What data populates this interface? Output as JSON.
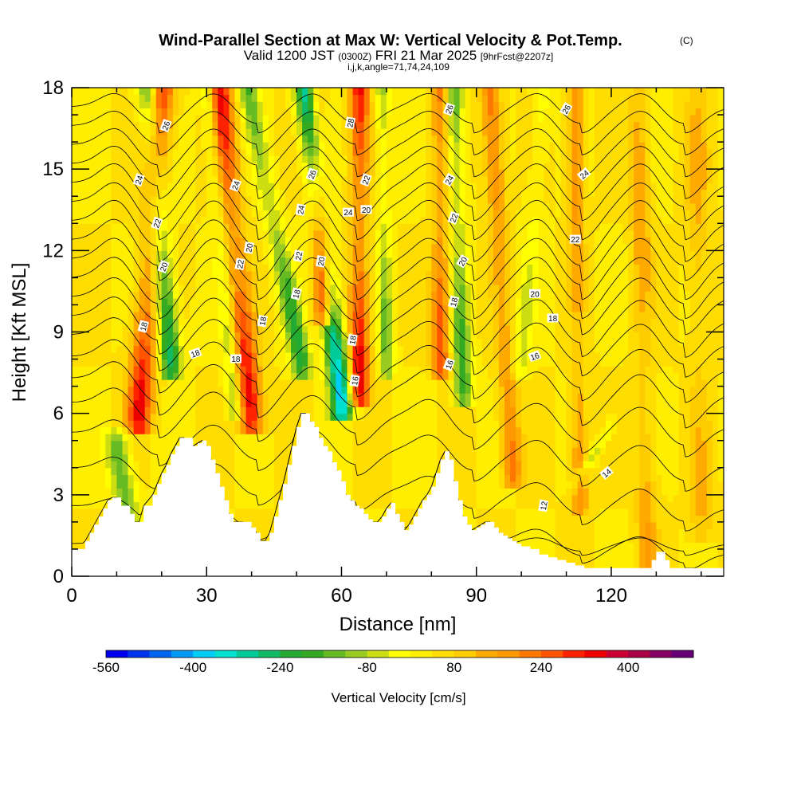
{
  "chart_data": {
    "type": "heatmap",
    "title": "Wind-Parallel Section at Max W: Vertical Velocity & Pot.Temp.",
    "title_mark": "(C)",
    "subtitle_valid": "Valid 1200 JST",
    "subtitle_utc": "(0300Z)",
    "subtitle_date": "FRI 21 Mar 2025",
    "subtitle_fcst": "[9hrFcst@2207z]",
    "subtitle_params": "i,j,k,angle=71,74,24,109",
    "xlabel": "Distance [nm]",
    "ylabel": "Height [Kft MSL]",
    "xlim": [
      0,
      145
    ],
    "ylim": [
      0,
      18
    ],
    "x_ticks": [
      "0",
      "30",
      "60",
      "90",
      "120"
    ],
    "x_tick_values": [
      0,
      30,
      60,
      90,
      120
    ],
    "y_ticks": [
      "0",
      "3",
      "6",
      "9",
      "12",
      "15",
      "18"
    ],
    "y_tick_values": [
      0,
      3,
      6,
      9,
      12,
      15,
      18
    ],
    "colorbar": {
      "title": "Vertical Velocity [cm/s]",
      "tick_labels": [
        "-560",
        "-400",
        "-240",
        "-80",
        "80",
        "240",
        "400"
      ],
      "tick_values": [
        -560,
        -400,
        -240,
        -80,
        80,
        240,
        400
      ],
      "range": [
        -560,
        520
      ],
      "colors": [
        "#0000ee",
        "#0033ee",
        "#0066f0",
        "#0099f5",
        "#00ccf8",
        "#00e0d0",
        "#00cc99",
        "#11bb66",
        "#22aa33",
        "#33aa22",
        "#66bb22",
        "#99cc22",
        "#ccdd11",
        "#ffff00",
        "#ffee00",
        "#ffdd00",
        "#ffcc00",
        "#ffaa00",
        "#ff9900",
        "#ff7700",
        "#ff5500",
        "#ff2200",
        "#ee0000",
        "#cc0033",
        "#aa0044",
        "#880066",
        "#660077"
      ]
    },
    "terrain": {
      "x": [
        0,
        2,
        3,
        4,
        5,
        6,
        7,
        8,
        9,
        10,
        11,
        13,
        14,
        15,
        16,
        18,
        19,
        20,
        21,
        22,
        23,
        24,
        25,
        27,
        28,
        29,
        30,
        31,
        32,
        33,
        34,
        35,
        36,
        37,
        38,
        40,
        41,
        42,
        43,
        44,
        45,
        46,
        47,
        48,
        49,
        50,
        51,
        52,
        53,
        54,
        55,
        56,
        57,
        58,
        59,
        60,
        61,
        62,
        63,
        64,
        65,
        66,
        67,
        68,
        69,
        70,
        71,
        72,
        73,
        74,
        75,
        76,
        77,
        78,
        79,
        80,
        81,
        82,
        83,
        84,
        85,
        86,
        87,
        88,
        89,
        90,
        91,
        92,
        93,
        94,
        95,
        96,
        97,
        98,
        99,
        100,
        102,
        104,
        106,
        108,
        110,
        112,
        114,
        116,
        118,
        120,
        122,
        124,
        126,
        128,
        129,
        130,
        131,
        132,
        133,
        134,
        135,
        136,
        138,
        140,
        142,
        145
      ],
      "y": [
        1.0,
        1.0,
        1.3,
        1.6,
        1.9,
        2.2,
        2.5,
        2.8,
        2.9,
        2.9,
        2.6,
        2.3,
        2.0,
        2.0,
        2.6,
        3.0,
        3.4,
        3.8,
        4.1,
        4.5,
        4.8,
        5.1,
        5.1,
        4.8,
        4.9,
        5.0,
        4.8,
        4.3,
        3.8,
        3.3,
        2.8,
        2.3,
        2.0,
        2.0,
        2.0,
        1.8,
        1.6,
        1.3,
        1.3,
        1.6,
        2.2,
        2.8,
        3.4,
        4.1,
        4.8,
        5.5,
        6.0,
        6.0,
        5.7,
        5.5,
        5.1,
        4.8,
        4.6,
        4.2,
        3.9,
        3.5,
        3.0,
        2.8,
        2.6,
        2.5,
        2.3,
        2.1,
        2.0,
        2.0,
        2.2,
        2.5,
        2.7,
        2.3,
        2.0,
        1.7,
        1.9,
        2.2,
        2.5,
        2.8,
        3.0,
        3.3,
        3.8,
        4.3,
        4.6,
        4.3,
        3.5,
        2.8,
        2.2,
        1.9,
        1.7,
        1.8,
        1.9,
        2.0,
        2.0,
        1.8,
        1.6,
        1.5,
        1.4,
        1.3,
        1.2,
        1.1,
        1.0,
        0.8,
        0.7,
        0.6,
        0.5,
        0.4,
        0.3,
        0.3,
        0.3,
        0.3,
        0.3,
        0.3,
        0.3,
        0.3,
        0.6,
        0.9,
        0.9,
        0.6,
        0.3,
        0.3,
        0.3,
        0.3,
        0.3,
        0.3,
        0.3,
        0.3
      ]
    },
    "velocity_features": [
      {
        "kind": "down",
        "x0": 10,
        "y0": 4.8,
        "x1": 14,
        "y1": 0.8,
        "amp": -200,
        "w": 2.6
      },
      {
        "kind": "up",
        "x0": 15,
        "y0": 6.0,
        "x1": 20,
        "y1": 18,
        "amp": 290,
        "w": 2.8
      },
      {
        "kind": "down",
        "x0": 22,
        "y0": 8.0,
        "x1": 17,
        "y1": 18,
        "amp": -300,
        "w": 2.4
      },
      {
        "kind": "up",
        "x0": 40,
        "y0": 6.0,
        "x1": 33,
        "y1": 18,
        "amp": 310,
        "w": 2.6
      },
      {
        "kind": "down",
        "x0": 36,
        "y0": 6.5,
        "x1": 30,
        "y1": 18,
        "amp": -130,
        "w": 1.6
      },
      {
        "kind": "down",
        "x0": 51,
        "y0": 8.0,
        "x1": 39,
        "y1": 18,
        "amp": -260,
        "w": 2.2
      },
      {
        "kind": "up",
        "x0": 56,
        "y0": 10.0,
        "x1": 54,
        "y1": 18,
        "amp": 330,
        "w": 2.0
      },
      {
        "kind": "down",
        "x0": 60,
        "y0": 6.5,
        "x1": 52,
        "y1": 18,
        "amp": -420,
        "w": 2.4
      },
      {
        "kind": "up",
        "x0": 64,
        "y0": 7.0,
        "x1": 64,
        "y1": 18,
        "amp": 320,
        "w": 2.2
      },
      {
        "kind": "down",
        "x0": 70,
        "y0": 8.0,
        "x1": 69,
        "y1": 18,
        "amp": -180,
        "w": 1.6
      },
      {
        "kind": "up",
        "x0": 82,
        "y0": 8.0,
        "x1": 82,
        "y1": 18,
        "amp": 240,
        "w": 2.0
      },
      {
        "kind": "down",
        "x0": 87,
        "y0": 7.0,
        "x1": 85,
        "y1": 18,
        "amp": -240,
        "w": 2.0
      },
      {
        "kind": "up",
        "x0": 98,
        "y0": 4.0,
        "x1": 93,
        "y1": 18,
        "amp": 180,
        "w": 2.2
      },
      {
        "kind": "down",
        "x0": 100,
        "y0": 8.0,
        "x1": 105,
        "y1": 18,
        "amp": -100,
        "w": 2.0
      },
      {
        "kind": "up",
        "x0": 113,
        "y0": 3.0,
        "x1": 112,
        "y1": 18,
        "amp": 160,
        "w": 1.8
      },
      {
        "kind": "down",
        "x0": 112,
        "y0": 3.5,
        "x1": 120,
        "y1": 5.5,
        "amp": -110,
        "w": 1.3
      },
      {
        "kind": "up",
        "x0": 128,
        "y0": 1.0,
        "x1": 126,
        "y1": 18,
        "amp": 120,
        "w": 2.2
      },
      {
        "kind": "up",
        "x0": 140,
        "y0": 2.0,
        "x1": 139,
        "y1": 18,
        "amp": 90,
        "w": 2.5
      }
    ],
    "theta_levels": [
      {
        "base": 1.2,
        "slope": 0.0,
        "amp": 0.4
      },
      {
        "base": 2.6,
        "slope": -0.012,
        "amp": 0.7
      },
      {
        "base": 4.0,
        "slope": -0.01,
        "amp": 0.9
      },
      {
        "base": 5.3,
        "slope": -0.008,
        "amp": 1.0
      },
      {
        "base": 6.4,
        "slope": -0.006,
        "amp": 1.1
      },
      {
        "base": 7.3,
        "slope": -0.004,
        "amp": 1.2
      },
      {
        "base": 8.1,
        "slope": -0.003,
        "amp": 1.2
      },
      {
        "base": 8.9,
        "slope": -0.002,
        "amp": 1.2
      },
      {
        "base": 9.6,
        "slope": -0.001,
        "amp": 1.3
      },
      {
        "base": 10.3,
        "slope": 0.0,
        "amp": 1.3
      },
      {
        "base": 11.0,
        "slope": 0.0,
        "amp": 1.4
      },
      {
        "base": 11.7,
        "slope": 0.0,
        "amp": 1.4
      },
      {
        "base": 12.4,
        "slope": 0.0,
        "amp": 1.4
      },
      {
        "base": 13.1,
        "slope": 0.0,
        "amp": 1.4
      },
      {
        "base": 13.8,
        "slope": 0.0,
        "amp": 1.3
      },
      {
        "base": 14.5,
        "slope": 0.0,
        "amp": 1.3
      },
      {
        "base": 15.2,
        "slope": 0.0,
        "amp": 1.2
      },
      {
        "base": 15.9,
        "slope": 0.0,
        "amp": 1.1
      },
      {
        "base": 16.6,
        "slope": 0.0,
        "amp": 1.0
      },
      {
        "base": 17.3,
        "slope": 0.0,
        "amp": 0.9
      }
    ],
    "wave_x": [
      16,
      38,
      60,
      86,
      110,
      133
    ],
    "contour_labels": [
      {
        "text": "26",
        "x": 21,
        "y": 16.6,
        "rot": -70
      },
      {
        "text": "24",
        "x": 15,
        "y": 14.6,
        "rot": -70
      },
      {
        "text": "22",
        "x": 19,
        "y": 13.0,
        "rot": -70
      },
      {
        "text": "20",
        "x": 20.5,
        "y": 11.4,
        "rot": -70
      },
      {
        "text": "18",
        "x": 16,
        "y": 9.2,
        "rot": -75
      },
      {
        "text": "18",
        "x": 27.5,
        "y": 8.2,
        "rot": -20
      },
      {
        "text": "24",
        "x": 36.5,
        "y": 14.4,
        "rot": -70
      },
      {
        "text": "20",
        "x": 39.5,
        "y": 12.1,
        "rot": -80
      },
      {
        "text": "22",
        "x": 37.5,
        "y": 11.5,
        "rot": -80
      },
      {
        "text": "18",
        "x": 36.5,
        "y": 8.0,
        "rot": 0
      },
      {
        "text": "18",
        "x": 42.5,
        "y": 9.4,
        "rot": -80
      },
      {
        "text": "26",
        "x": 53.5,
        "y": 14.8,
        "rot": -70
      },
      {
        "text": "24",
        "x": 51,
        "y": 13.5,
        "rot": -80
      },
      {
        "text": "22",
        "x": 50.5,
        "y": 11.8,
        "rot": -80
      },
      {
        "text": "20",
        "x": 55.5,
        "y": 11.6,
        "rot": -80
      },
      {
        "text": "18",
        "x": 50,
        "y": 10.4,
        "rot": -75
      },
      {
        "text": "28",
        "x": 62,
        "y": 16.7,
        "rot": -80
      },
      {
        "text": "22",
        "x": 65.5,
        "y": 14.6,
        "rot": -70
      },
      {
        "text": "24",
        "x": 61.5,
        "y": 13.4,
        "rot": 0
      },
      {
        "text": "20",
        "x": 65.5,
        "y": 13.5,
        "rot": 0
      },
      {
        "text": "18",
        "x": 62.5,
        "y": 8.7,
        "rot": -80
      },
      {
        "text": "16",
        "x": 63,
        "y": 7.2,
        "rot": -80
      },
      {
        "text": "26",
        "x": 84,
        "y": 17.2,
        "rot": -70
      },
      {
        "text": "24",
        "x": 84,
        "y": 14.6,
        "rot": -60
      },
      {
        "text": "22",
        "x": 85,
        "y": 13.2,
        "rot": -70
      },
      {
        "text": "20",
        "x": 87,
        "y": 11.6,
        "rot": -60
      },
      {
        "text": "18",
        "x": 85,
        "y": 10.1,
        "rot": -75
      },
      {
        "text": "16",
        "x": 84,
        "y": 7.8,
        "rot": -70
      },
      {
        "text": "26",
        "x": 110,
        "y": 17.2,
        "rot": -60
      },
      {
        "text": "24",
        "x": 114,
        "y": 14.8,
        "rot": -40
      },
      {
        "text": "22",
        "x": 112,
        "y": 12.4,
        "rot": 0
      },
      {
        "text": "20",
        "x": 103,
        "y": 10.4,
        "rot": 0
      },
      {
        "text": "18",
        "x": 107,
        "y": 9.5,
        "rot": 0
      },
      {
        "text": "16",
        "x": 103,
        "y": 8.1,
        "rot": -20
      },
      {
        "text": "14",
        "x": 119,
        "y": 3.8,
        "rot": -40
      },
      {
        "text": "12",
        "x": 105,
        "y": 2.6,
        "rot": -80
      }
    ]
  }
}
